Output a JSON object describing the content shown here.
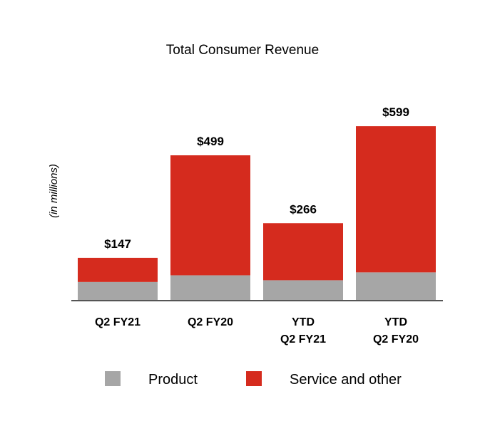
{
  "chart_data": {
    "type": "bar",
    "stacked": true,
    "title": "Total Consumer Revenue",
    "ylabel": "(in millions)",
    "xlabel": "",
    "categories": [
      [
        "Q2 FY21"
      ],
      [
        "Q2 FY20"
      ],
      [
        "YTD",
        "Q2 FY21"
      ],
      [
        "YTD",
        "Q2 FY20"
      ]
    ],
    "totals": [
      147,
      499,
      266,
      599
    ],
    "total_labels": [
      "$147",
      "$499",
      "$266",
      "$599"
    ],
    "series": [
      {
        "name": "Product",
        "color": "#a6a6a6",
        "values": [
          64,
          87,
          70,
          97
        ]
      },
      {
        "name": "Service and other",
        "color": "#d52b1e",
        "values": [
          83,
          412,
          196,
          502
        ]
      }
    ],
    "ylim": [
      0,
      640
    ],
    "grid": false,
    "legend": "bottom"
  }
}
